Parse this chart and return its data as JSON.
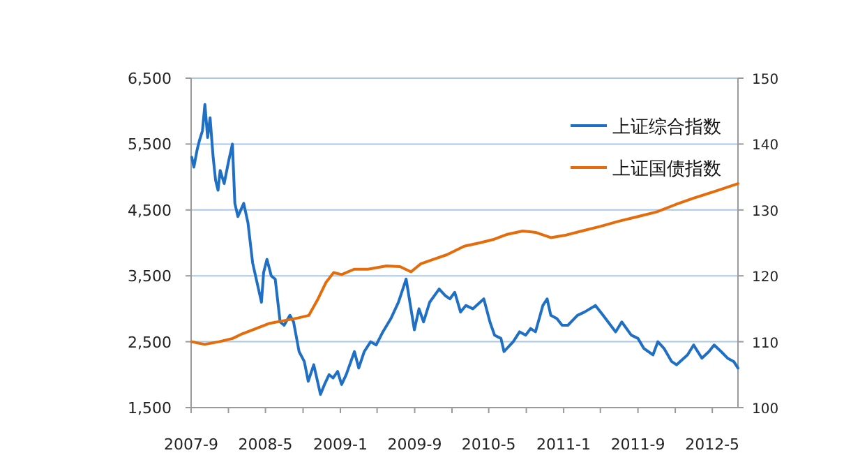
{
  "chart_data": {
    "type": "line",
    "ylim": [
      1500,
      6500
    ],
    "yticks": [
      {
        "value": 1500,
        "label": "1,500"
      },
      {
        "value": 2500,
        "label": "2,500"
      },
      {
        "value": 3500,
        "label": "3,500"
      },
      {
        "value": 4500,
        "label": "4,500"
      },
      {
        "value": 5500,
        "label": "5,500"
      },
      {
        "value": 6500,
        "label": "6,500"
      }
    ],
    "y2lim": [
      100,
      150
    ],
    "y2ticks": [
      100,
      110,
      120,
      130,
      140,
      150
    ],
    "xlim": [
      "2007-09-01",
      "2012-07-24"
    ],
    "xticks": [
      {
        "value": "2007-09",
        "label": "2007-9"
      },
      {
        "value": "2008-01",
        "label": null
      },
      {
        "value": "2008-05",
        "label": "2008-5"
      },
      {
        "value": "2008-09",
        "label": null
      },
      {
        "value": "2009-01",
        "label": "2009-1"
      },
      {
        "value": "2009-05",
        "label": null
      },
      {
        "value": "2009-09",
        "label": "2009-9"
      },
      {
        "value": "2010-01",
        "label": null
      },
      {
        "value": "2010-05",
        "label": "2010-5"
      },
      {
        "value": "2010-09",
        "label": null
      },
      {
        "value": "2011-01",
        "label": "2011-1"
      },
      {
        "value": "2011-05",
        "label": null
      },
      {
        "value": "2011-09",
        "label": "2011-9"
      },
      {
        "value": "2012-01",
        "label": null
      },
      {
        "value": "2012-05",
        "label": "2012-5"
      }
    ],
    "grid": "y",
    "legend": "top right",
    "marker": "none",
    "line_style": "solid",
    "series": [
      {
        "name": "上证综合指数",
        "color": "#1f6fc5",
        "axis": "y",
        "x": [
          "2007-09-03",
          "2007-09-10",
          "2007-09-20",
          "2007-09-28",
          "2007-10-08",
          "2007-10-16",
          "2007-10-25",
          "2007-11-02",
          "2007-11-12",
          "2007-11-20",
          "2007-11-28",
          "2007-12-05",
          "2007-12-18",
          "2008-01-02",
          "2008-01-14",
          "2008-01-22",
          "2008-02-01",
          "2008-02-20",
          "2008-03-05",
          "2008-03-20",
          "2008-04-01",
          "2008-04-18",
          "2008-04-25",
          "2008-05-06",
          "2008-05-20",
          "2008-06-02",
          "2008-06-18",
          "2008-07-01",
          "2008-07-20",
          "2008-08-01",
          "2008-08-19",
          "2008-09-05",
          "2008-09-18",
          "2008-10-06",
          "2008-10-28",
          "2008-11-10",
          "2008-11-25",
          "2008-12-08",
          "2008-12-23",
          "2009-01-05",
          "2009-01-20",
          "2009-02-16",
          "2009-03-02",
          "2009-03-20",
          "2009-04-10",
          "2009-04-28",
          "2009-05-20",
          "2009-06-15",
          "2009-07-10",
          "2009-08-04",
          "2009-08-31",
          "2009-09-15",
          "2009-09-30",
          "2009-10-20",
          "2009-11-20",
          "2009-12-10",
          "2009-12-25",
          "2010-01-10",
          "2010-01-29",
          "2010-02-15",
          "2010-03-10",
          "2010-04-15",
          "2010-05-05",
          "2010-05-20",
          "2010-06-10",
          "2010-06-20",
          "2010-07-20",
          "2010-08-10",
          "2010-08-30",
          "2010-09-15",
          "2010-10-01",
          "2010-10-25",
          "2010-11-08",
          "2010-11-20",
          "2010-12-10",
          "2010-12-27",
          "2011-01-15",
          "2011-02-15",
          "2011-03-10",
          "2011-04-15",
          "2011-05-10",
          "2011-06-20",
          "2011-07-10",
          "2011-08-10",
          "2011-09-01",
          "2011-09-20",
          "2011-10-20",
          "2011-11-05",
          "2011-11-25",
          "2011-12-20",
          "2012-01-05",
          "2012-02-10",
          "2012-03-01",
          "2012-03-28",
          "2012-04-20",
          "2012-05-07",
          "2012-05-30",
          "2012-06-20",
          "2012-07-10",
          "2012-07-24"
        ],
        "values": [
          5300,
          5150,
          5400,
          5550,
          5700,
          6100,
          5600,
          5900,
          5300,
          4950,
          4800,
          5100,
          4900,
          5250,
          5500,
          4600,
          4400,
          4600,
          4300,
          3700,
          3450,
          3100,
          3550,
          3750,
          3500,
          3450,
          2800,
          2750,
          2900,
          2800,
          2350,
          2200,
          1900,
          2150,
          1700,
          1850,
          2000,
          1950,
          2050,
          1850,
          2000,
          2350,
          2100,
          2350,
          2500,
          2450,
          2650,
          2850,
          3100,
          3450,
          2680,
          3000,
          2800,
          3100,
          3300,
          3200,
          3150,
          3250,
          2950,
          3050,
          3000,
          3150,
          2800,
          2600,
          2550,
          2350,
          2500,
          2650,
          2600,
          2700,
          2650,
          3050,
          3150,
          2900,
          2850,
          2750,
          2750,
          2900,
          2950,
          3050,
          2900,
          2650,
          2800,
          2600,
          2550,
          2400,
          2300,
          2500,
          2400,
          2200,
          2150,
          2300,
          2450,
          2250,
          2350,
          2450,
          2350,
          2250,
          2200,
          2100
        ]
      },
      {
        "name": "上证国债指数",
        "color": "#e46c0a",
        "axis": "y2",
        "x": [
          "2007-09-03",
          "2007-10-15",
          "2007-12-01",
          "2008-01-15",
          "2008-02-15",
          "2008-04-01",
          "2008-05-15",
          "2008-07-01",
          "2008-08-15",
          "2008-09-20",
          "2008-10-20",
          "2008-11-15",
          "2008-12-10",
          "2009-01-05",
          "2009-02-15",
          "2009-04-01",
          "2009-06-01",
          "2009-07-15",
          "2009-08-20",
          "2009-09-20",
          "2009-11-01",
          "2009-12-15",
          "2010-02-10",
          "2010-04-01",
          "2010-05-15",
          "2010-07-01",
          "2010-08-20",
          "2010-10-01",
          "2010-11-20",
          "2011-01-10",
          "2011-03-01",
          "2011-05-01",
          "2011-07-01",
          "2011-09-01",
          "2011-11-01",
          "2012-01-01",
          "2012-03-01",
          "2012-05-01",
          "2012-07-24"
        ],
        "values": [
          110,
          109.6,
          110,
          110.5,
          111.2,
          112,
          112.8,
          113.2,
          113.6,
          114,
          116.5,
          119,
          120.5,
          120.2,
          121,
          121,
          121.5,
          121.4,
          120.6,
          121.8,
          122.5,
          123.2,
          124.5,
          125,
          125.5,
          126.3,
          126.8,
          126.6,
          125.8,
          126.2,
          126.8,
          127.5,
          128.3,
          129,
          129.7,
          130.8,
          131.8,
          132.7,
          134
        ]
      }
    ]
  }
}
